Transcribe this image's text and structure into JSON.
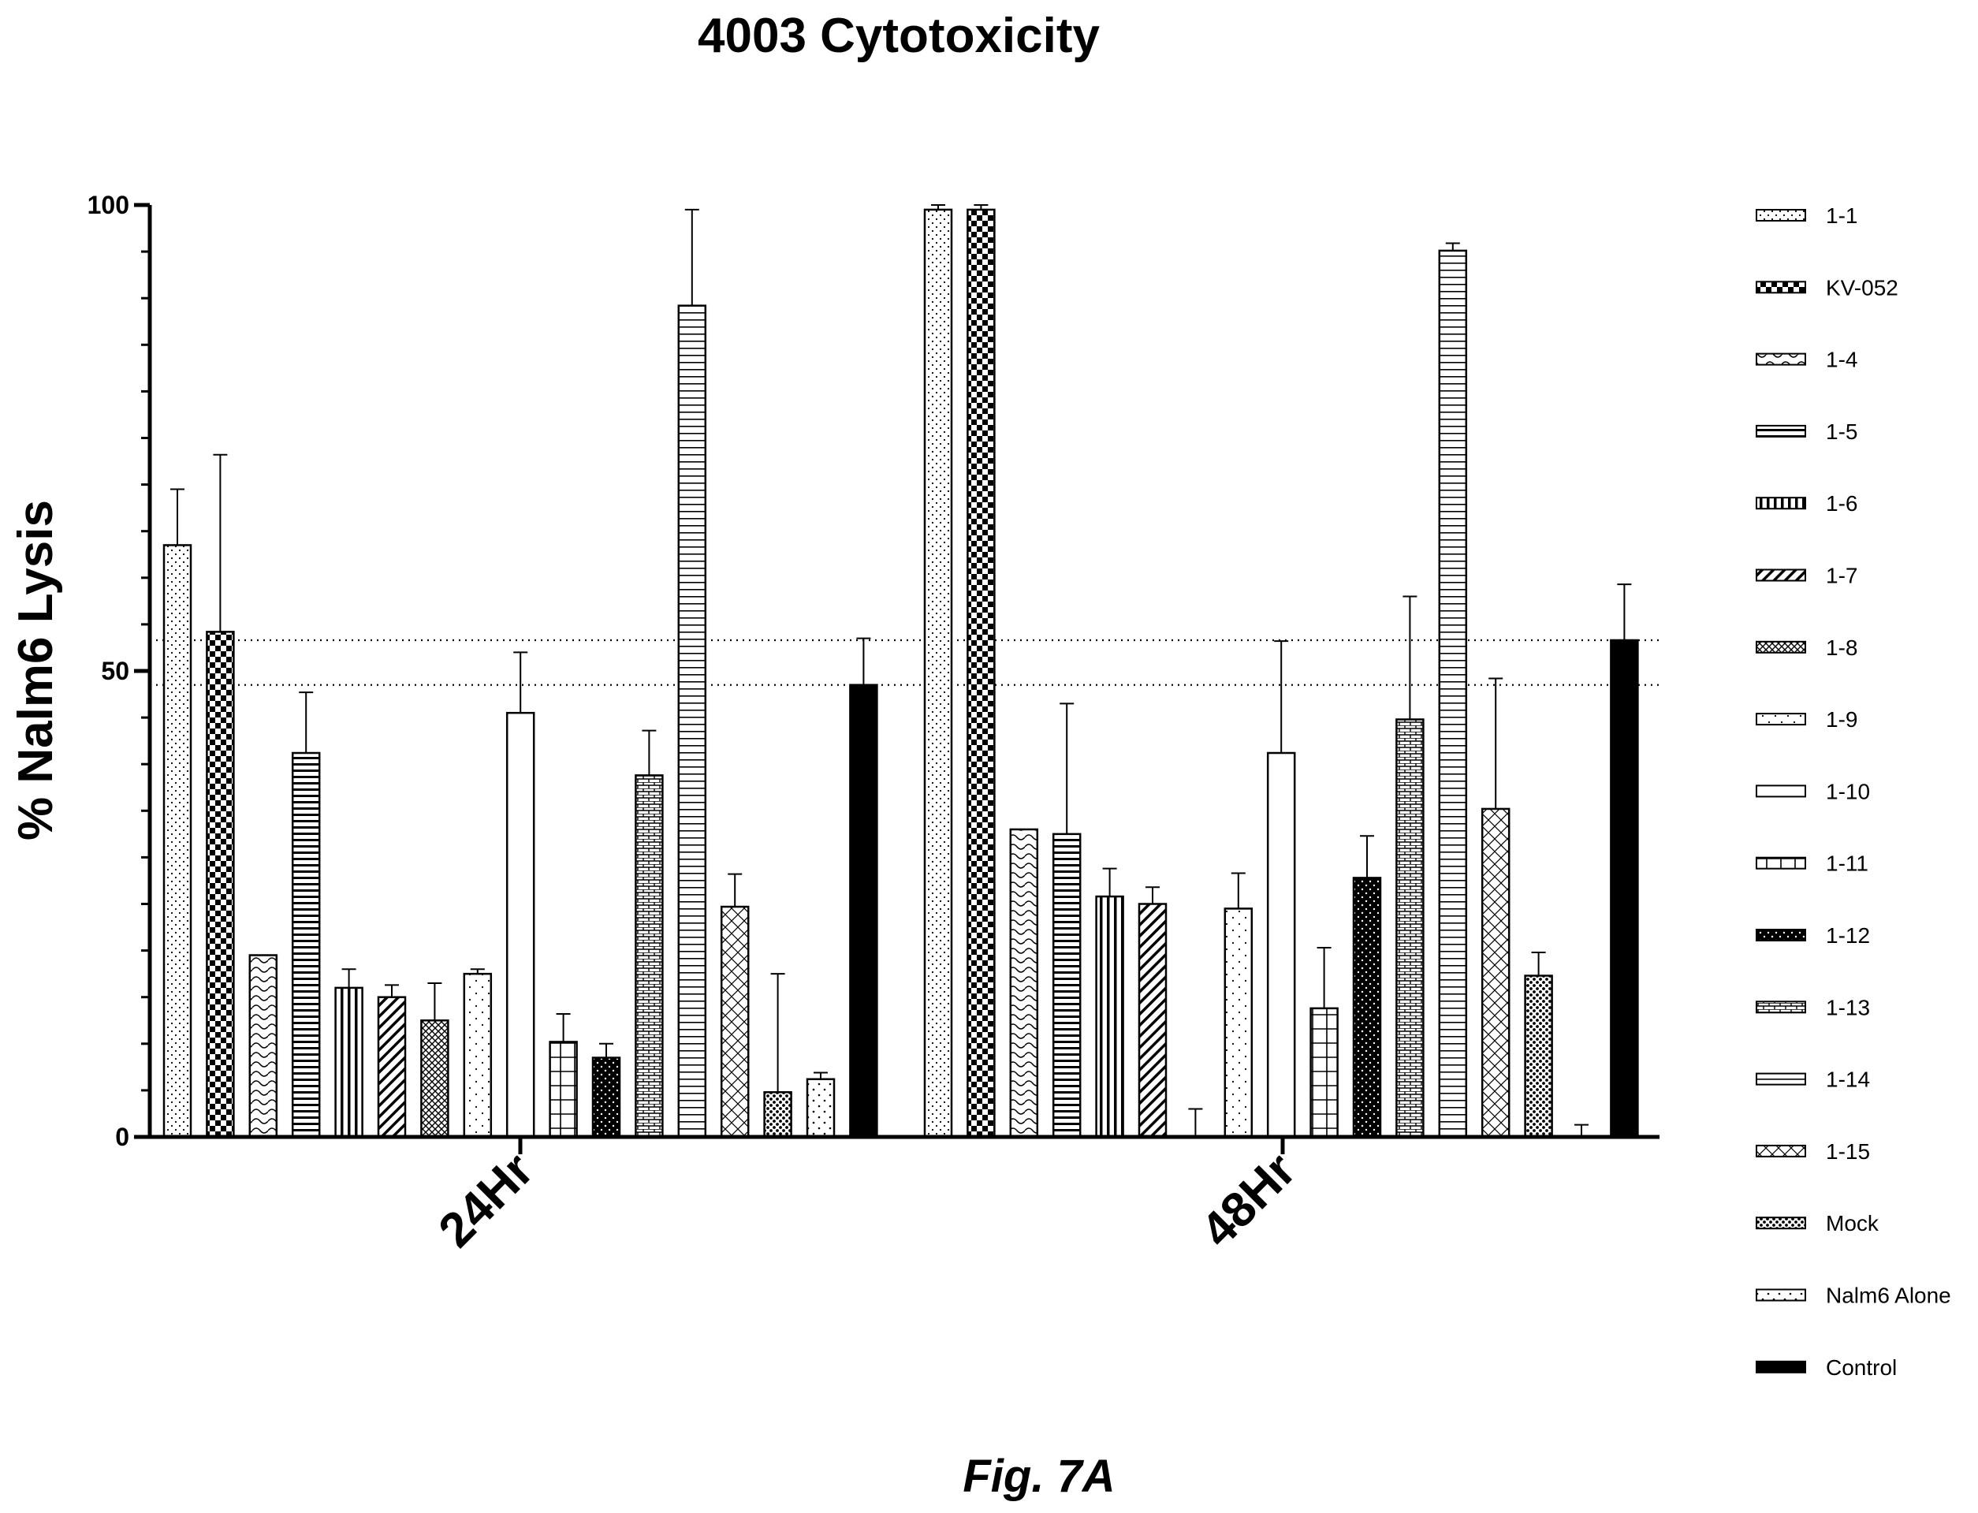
{
  "figure_label": "Fig. 7A",
  "chart_data": {
    "type": "bar",
    "title": "4003 Cytotoxicity",
    "xlabel": "",
    "ylabel": "% Nalm6 Lysis",
    "ylim": [
      0,
      100
    ],
    "yticks": [
      "0",
      "50",
      "100"
    ],
    "categories": [
      "24Hr",
      "48Hr"
    ],
    "legend_position": "right",
    "reference_lines": [
      48.5,
      53.3
    ],
    "series": [
      {
        "name": "1-1",
        "pattern": "dots",
        "values": [
          63.5,
          99.5
        ],
        "errors": [
          6,
          0.5
        ]
      },
      {
        "name": "KV-052",
        "pattern": "checker",
        "values": [
          54.2,
          99.5
        ],
        "errors": [
          19,
          0.5
        ]
      },
      {
        "name": "1-4",
        "pattern": "waves",
        "values": [
          19.5,
          33
        ],
        "errors": [
          0,
          0
        ]
      },
      {
        "name": "1-5",
        "pattern": "hlines",
        "values": [
          41.2,
          32.5
        ],
        "errors": [
          6.5,
          14
        ]
      },
      {
        "name": "1-6",
        "pattern": "vlines",
        "values": [
          16,
          25.8
        ],
        "errors": [
          2,
          3
        ]
      },
      {
        "name": "1-7",
        "pattern": "diag",
        "values": [
          15,
          25
        ],
        "errors": [
          1.3,
          1.8
        ]
      },
      {
        "name": "1-8",
        "pattern": "crossdiag",
        "values": [
          12.5,
          0
        ],
        "errors": [
          4,
          3
        ]
      },
      {
        "name": "1-9",
        "pattern": "sparsedots",
        "values": [
          17.5,
          24.5
        ],
        "errors": [
          0.5,
          3.8
        ]
      },
      {
        "name": "1-10",
        "pattern": "none",
        "values": [
          45.5,
          41.2
        ],
        "errors": [
          6.5,
          12
        ]
      },
      {
        "name": "1-11",
        "pattern": "grid",
        "values": [
          10.2,
          13.8
        ],
        "errors": [
          3,
          6.5
        ]
      },
      {
        "name": "1-12",
        "pattern": "black-dots",
        "values": [
          8.5,
          27.8
        ],
        "errors": [
          1.5,
          4.5
        ]
      },
      {
        "name": "1-13",
        "pattern": "brick",
        "values": [
          38.8,
          44.8
        ],
        "errors": [
          4.8,
          13.2
        ]
      },
      {
        "name": "1-14",
        "pattern": "hlines-fine",
        "values": [
          89.2,
          95.1
        ],
        "errors": [
          10.3,
          0.8
        ]
      },
      {
        "name": "1-15",
        "pattern": "crosshatch",
        "values": [
          24.7,
          35.2
        ],
        "errors": [
          3.5,
          14
        ]
      },
      {
        "name": "Mock",
        "pattern": "dense-dots",
        "values": [
          4.8,
          17.3
        ],
        "errors": [
          12.7,
          2.5
        ]
      },
      {
        "name": "Nalm6 Alone",
        "pattern": "sparse-dots2",
        "values": [
          6.2,
          0
        ],
        "errors": [
          0.7,
          1.3
        ]
      },
      {
        "name": "Control",
        "pattern": "solid",
        "values": [
          48.5,
          53.3
        ],
        "errors": [
          5,
          6
        ]
      }
    ]
  }
}
